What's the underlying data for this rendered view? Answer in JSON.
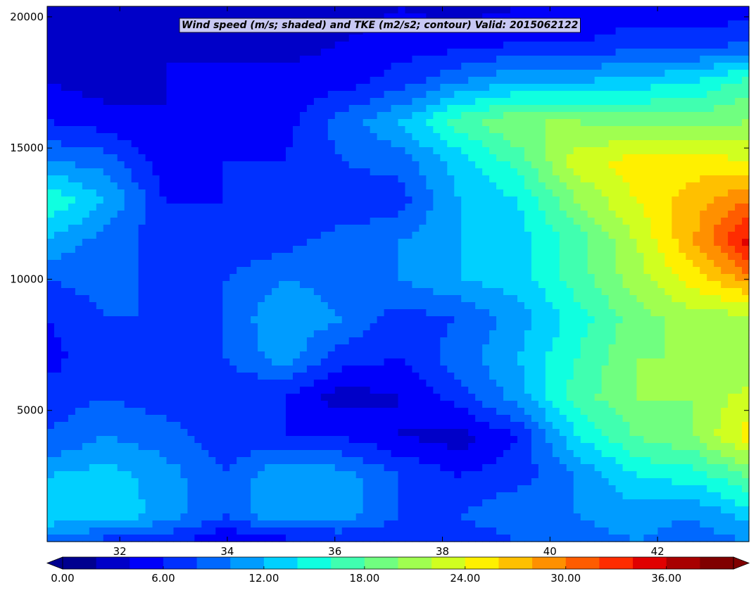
{
  "chart_data": {
    "type": "heatmap",
    "title": "Wind speed (m/s; shaded) and TKE (m2/s2; contour) Valid: 2015062122",
    "xlabel": "",
    "ylabel": "",
    "xlim": [
      30.65,
      43.7
    ],
    "ylim": [
      0,
      20400
    ],
    "x_ticks": [
      32,
      34,
      36,
      38,
      40,
      42
    ],
    "x_tick_labels": [
      "32",
      "34",
      "36",
      "38",
      "40",
      "42"
    ],
    "y_ticks": [
      5000,
      10000,
      15000,
      20000
    ],
    "y_tick_labels": [
      "5000",
      "10000",
      "15000",
      "20000"
    ],
    "grid": false,
    "colorscale": {
      "name": "jet",
      "levels": [
        0,
        2,
        4,
        6,
        8,
        10,
        12,
        14,
        16,
        18,
        20,
        22,
        24,
        26,
        28,
        30,
        32,
        34,
        36,
        38,
        40
      ],
      "colors": [
        "#00008f",
        "#0000c8",
        "#0000fa",
        "#0030ff",
        "#0068ff",
        "#009cff",
        "#00d0ff",
        "#10ffe0",
        "#40ffb0",
        "#70ff80",
        "#a0ff50",
        "#d0ff20",
        "#fff000",
        "#ffc000",
        "#ff9000",
        "#ff5c00",
        "#ff2c00",
        "#e00000",
        "#a80000",
        "#800000"
      ],
      "extend": "both",
      "orientation": "horizontal",
      "tick_values": [
        0,
        6,
        12,
        18,
        24,
        30,
        36
      ],
      "tick_labels": [
        "0.00",
        "6.00",
        "12.00",
        "18.00",
        "24.00",
        "30.00",
        "36.00"
      ]
    },
    "grid_x": [
      30.65,
      31.75,
      32.84,
      33.94,
      35.03,
      36.12,
      37.22,
      38.31,
      39.41,
      40.5,
      41.59,
      42.69,
      43.7
    ],
    "grid_y": [
      0,
      1000,
      2500,
      4000,
      5500,
      7000,
      8500,
      10000,
      11500,
      13000,
      14500,
      16000,
      17500,
      19000,
      20400
    ],
    "wind_speed": [
      [
        8,
        7,
        7,
        4,
        5,
        6,
        6,
        6,
        8,
        9,
        10,
        9,
        10
      ],
      [
        14,
        14,
        11,
        8,
        12,
        11,
        8,
        8,
        10,
        10,
        11,
        10,
        13
      ],
      [
        12,
        13,
        11,
        8,
        12,
        11,
        8,
        6,
        7,
        10,
        14,
        15,
        18
      ],
      [
        8,
        10,
        9,
        7,
        6,
        6,
        4,
        3,
        6,
        14,
        18,
        20,
        25
      ],
      [
        7,
        8,
        7,
        6,
        6,
        3,
        4,
        7,
        11,
        17,
        20,
        20,
        23
      ],
      [
        5,
        8,
        7,
        8,
        11,
        7,
        6,
        9,
        12,
        16,
        20,
        20,
        20
      ],
      [
        6,
        8,
        8,
        8,
        12,
        10,
        7,
        8,
        11,
        15,
        19,
        21,
        21
      ],
      [
        8,
        9,
        7,
        8,
        10,
        9,
        10,
        12,
        13,
        17,
        21,
        25,
        29
      ],
      [
        12,
        9,
        7,
        6,
        7,
        9,
        10,
        12,
        13,
        17,
        22,
        28,
        35
      ],
      [
        16,
        12,
        6,
        6,
        7,
        6,
        7,
        12,
        14,
        20,
        24,
        27,
        30
      ],
      [
        10,
        9,
        5,
        6,
        6,
        8,
        9,
        13,
        17,
        23,
        25,
        25,
        24
      ],
      [
        6,
        5,
        4,
        5,
        5,
        9,
        12,
        17,
        20,
        20,
        19,
        19,
        20
      ],
      [
        4,
        3,
        4,
        5,
        5,
        5,
        7,
        10,
        12,
        12,
        13,
        14,
        17
      ],
      [
        2,
        2,
        4,
        3,
        3,
        4,
        5,
        5,
        6,
        6,
        7,
        7,
        8
      ],
      [
        3,
        3,
        4,
        4,
        3,
        3,
        4,
        3,
        4,
        4,
        5,
        4,
        5
      ]
    ]
  }
}
